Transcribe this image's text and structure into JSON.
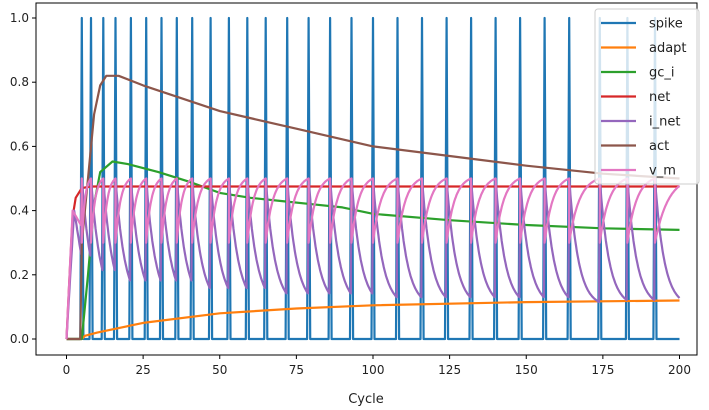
{
  "chart_data": {
    "type": "line",
    "title": "",
    "xlabel": "Cycle",
    "ylabel": "",
    "xlim": [
      -10,
      205
    ],
    "ylim": [
      -0.05,
      1.05
    ],
    "xticks": [
      0,
      25,
      50,
      75,
      100,
      125,
      150,
      175,
      200
    ],
    "yticks": [
      0.0,
      0.2,
      0.4,
      0.6,
      0.8,
      1.0
    ],
    "xtick_labels": [
      "0",
      "25",
      "50",
      "75",
      "100",
      "125",
      "150",
      "175",
      "200"
    ],
    "ytick_labels": [
      "0.0",
      "0.2",
      "0.4",
      "0.6",
      "0.8",
      "1.0"
    ],
    "grid": false,
    "legend_position": "top-right",
    "series": [
      {
        "name": "spike",
        "color": "#1f77b4",
        "spike_cycles": [
          5,
          8,
          12,
          16,
          21,
          26,
          31,
          36,
          41,
          47,
          53,
          59,
          65,
          72,
          79,
          86,
          93,
          100,
          108,
          116,
          124,
          132,
          140,
          148,
          156,
          164,
          174,
          183,
          192
        ]
      },
      {
        "name": "adapt",
        "color": "#ff7f0e",
        "points": [
          [
            0,
            0
          ],
          [
            5,
            0
          ],
          [
            6,
            0.01
          ],
          [
            10,
            0.02
          ],
          [
            25,
            0.05
          ],
          [
            50,
            0.08
          ],
          [
            75,
            0.095
          ],
          [
            100,
            0.105
          ],
          [
            150,
            0.115
          ],
          [
            200,
            0.12
          ]
        ]
      },
      {
        "name": "gc_i",
        "color": "#2ca02c",
        "points": [
          [
            0,
            0
          ],
          [
            5,
            0
          ],
          [
            7,
            0.2
          ],
          [
            9,
            0.42
          ],
          [
            11,
            0.52
          ],
          [
            15,
            0.553
          ],
          [
            20,
            0.545
          ],
          [
            30,
            0.52
          ],
          [
            40,
            0.49
          ],
          [
            50,
            0.455
          ],
          [
            60,
            0.44
          ],
          [
            70,
            0.43
          ],
          [
            80,
            0.42
          ],
          [
            90,
            0.41
          ],
          [
            100,
            0.39
          ],
          [
            125,
            0.37
          ],
          [
            150,
            0.355
          ],
          [
            175,
            0.345
          ],
          [
            200,
            0.34
          ]
        ]
      },
      {
        "name": "net",
        "color": "#d62728",
        "points": [
          [
            0,
            0
          ],
          [
            1,
            0.2
          ],
          [
            2,
            0.38
          ],
          [
            3,
            0.44
          ],
          [
            5,
            0.47
          ],
          [
            8,
            0.475
          ],
          [
            200,
            0.475
          ]
        ]
      },
      {
        "name": "i_net",
        "color": "#9467bd",
        "start_peak": 0.4,
        "min": 0.1,
        "max": 0.5
      },
      {
        "name": "act",
        "color": "#8c564b",
        "points": [
          [
            0,
            0
          ],
          [
            4.5,
            0
          ],
          [
            5,
            0.3
          ],
          [
            7,
            0.5
          ],
          [
            9,
            0.7
          ],
          [
            11,
            0.79
          ],
          [
            13,
            0.82
          ],
          [
            17,
            0.82
          ],
          [
            25,
            0.79
          ],
          [
            50,
            0.71
          ],
          [
            75,
            0.655
          ],
          [
            100,
            0.6
          ],
          [
            125,
            0.57
          ],
          [
            150,
            0.54
          ],
          [
            175,
            0.515
          ],
          [
            200,
            0.5
          ]
        ]
      },
      {
        "name": "v_m",
        "color": "#e377c2",
        "start_peak": 0.4,
        "min": 0.3,
        "max": 0.5
      }
    ]
  }
}
